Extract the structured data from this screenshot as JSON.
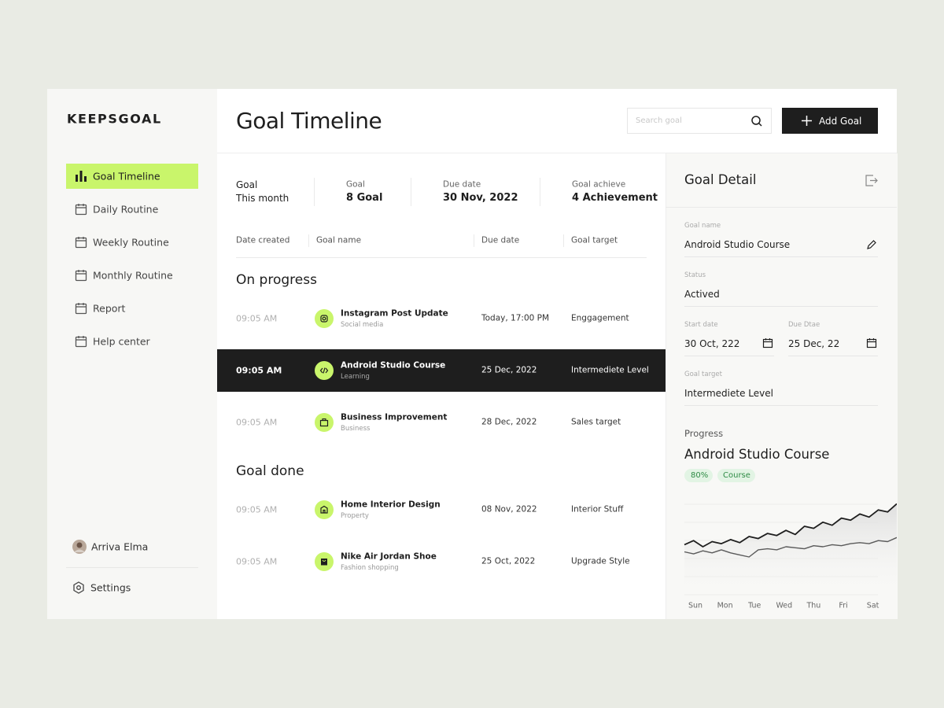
{
  "brand": "KEEPSGOAL",
  "nav": [
    {
      "label": "Goal Timeline",
      "active": true
    },
    {
      "label": "Daily Routine",
      "active": false
    },
    {
      "label": "Weekly Routine",
      "active": false
    },
    {
      "label": "Monthly Routine",
      "active": false
    },
    {
      "label": "Report",
      "active": false
    },
    {
      "label": "Help center",
      "active": false
    }
  ],
  "user": "Arriva Elma",
  "settings": "Settings",
  "header": {
    "title": "Goal Timeline",
    "search_placeholder": "Search goal",
    "add_button": "Add Goal"
  },
  "summary": [
    {
      "label": "Goal",
      "value": "This month"
    },
    {
      "label": "Goal",
      "value": "8 Goal"
    },
    {
      "label": "Due date",
      "value": "30 Nov, 2022"
    },
    {
      "label": "Goal achieve",
      "value": "4 Achievement"
    }
  ],
  "columns": [
    "Date created",
    "Goal name",
    "Due date",
    "Goal target"
  ],
  "sections": [
    {
      "title": "On progress",
      "rows": [
        {
          "time": "09:05 AM",
          "name": "Instagram Post Update",
          "category": "Social media",
          "due": "Today, 17:00 PM",
          "target": "Enggagement",
          "selected": false
        },
        {
          "time": "09:05 AM",
          "name": "Android Studio Course",
          "category": "Learning",
          "due": "25 Dec, 2022",
          "target": "Intermediete Level",
          "selected": true
        },
        {
          "time": "09:05 AM",
          "name": "Business Improvement",
          "category": "Business",
          "due": "28 Dec, 2022",
          "target": "Sales target",
          "selected": false
        }
      ]
    },
    {
      "title": "Goal done",
      "rows": [
        {
          "time": "09:05 AM",
          "name": "Home Interior Design",
          "category": "Property",
          "due": "08 Nov, 2022",
          "target": "Interior Stuff",
          "selected": false
        },
        {
          "time": "09:05 AM",
          "name": "Nike Air Jordan Shoe",
          "category": "Fashion shopping",
          "due": "25 Oct, 2022",
          "target": "Upgrade Style",
          "selected": false
        }
      ]
    }
  ],
  "detail": {
    "title": "Goal Detail",
    "goal_name": {
      "label": "Goal name",
      "value": "Android Studio Course"
    },
    "status": {
      "label": "Status",
      "value": "Actived"
    },
    "start_date": {
      "label": "Start date",
      "value": "30 Oct, 222"
    },
    "due_date": {
      "label": "Due Dtae",
      "value": "25 Dec, 22"
    },
    "goal_target": {
      "label": "Goal target",
      "value": "Intermediete Level"
    },
    "progress": {
      "label": "Progress",
      "name": "Android Studio Course",
      "percent": "80%",
      "tag": "Course",
      "chart": {
        "type": "line",
        "categories": [
          "Sun",
          "Mon",
          "Tue",
          "Wed",
          "Thu",
          "Fri",
          "Sat"
        ],
        "ylim": [
          0,
          100
        ],
        "series": [
          {
            "color": "#1e1e1e",
            "values": [
              52,
              56,
              50,
              55,
              53,
              57,
              54,
              60,
              58,
              63,
              61,
              66,
              62,
              70,
              68,
              74,
              71,
              78,
              76,
              82,
              79,
              86,
              84,
              92
            ]
          },
          {
            "color": "#5a5a5a",
            "values": [
              45,
              43,
              46,
              44,
              47,
              44,
              42,
              40,
              47,
              48,
              47,
              50,
              49,
              48,
              51,
              50,
              52,
              51,
              53,
              54,
              53,
              56,
              55,
              59
            ]
          }
        ]
      }
    }
  }
}
